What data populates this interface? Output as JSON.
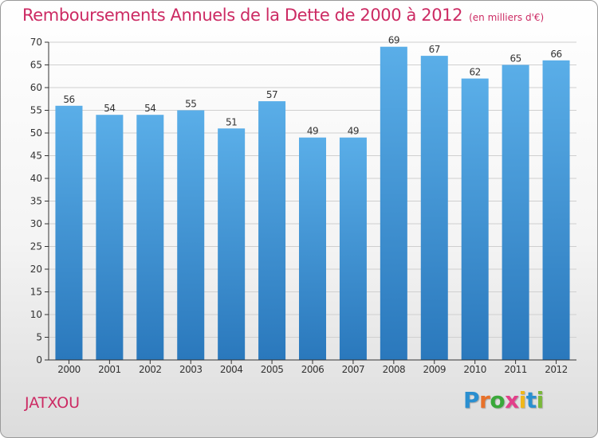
{
  "title": "Remboursements Annuels de la Dette de 2000 à 2012",
  "unit_note": "(en milliers d'€)",
  "town": "JATXOU",
  "brand": {
    "letters": [
      "P",
      "r",
      "o",
      "x",
      "i",
      "t",
      "i"
    ]
  },
  "colors": {
    "title": "#cc2a63",
    "bar_top": "#5aaee8",
    "bar_bottom": "#2a78bc",
    "grid": "#cfcfcf",
    "axis": "#333333"
  },
  "chart_data": {
    "type": "bar",
    "title": "Remboursements Annuels de la Dette de 2000 à 2012",
    "categories": [
      "2000",
      "2001",
      "2002",
      "2003",
      "2004",
      "2005",
      "2006",
      "2007",
      "2008",
      "2009",
      "2010",
      "2011",
      "2012"
    ],
    "values": [
      56,
      54,
      54,
      55,
      51,
      57,
      49,
      49,
      69,
      67,
      62,
      65,
      66
    ],
    "ylim": [
      0,
      70
    ],
    "yticks": [
      0,
      5,
      10,
      15,
      20,
      25,
      30,
      35,
      40,
      45,
      50,
      55,
      60,
      65,
      70
    ],
    "grid": true,
    "legend": "none",
    "data_labels": true
  }
}
